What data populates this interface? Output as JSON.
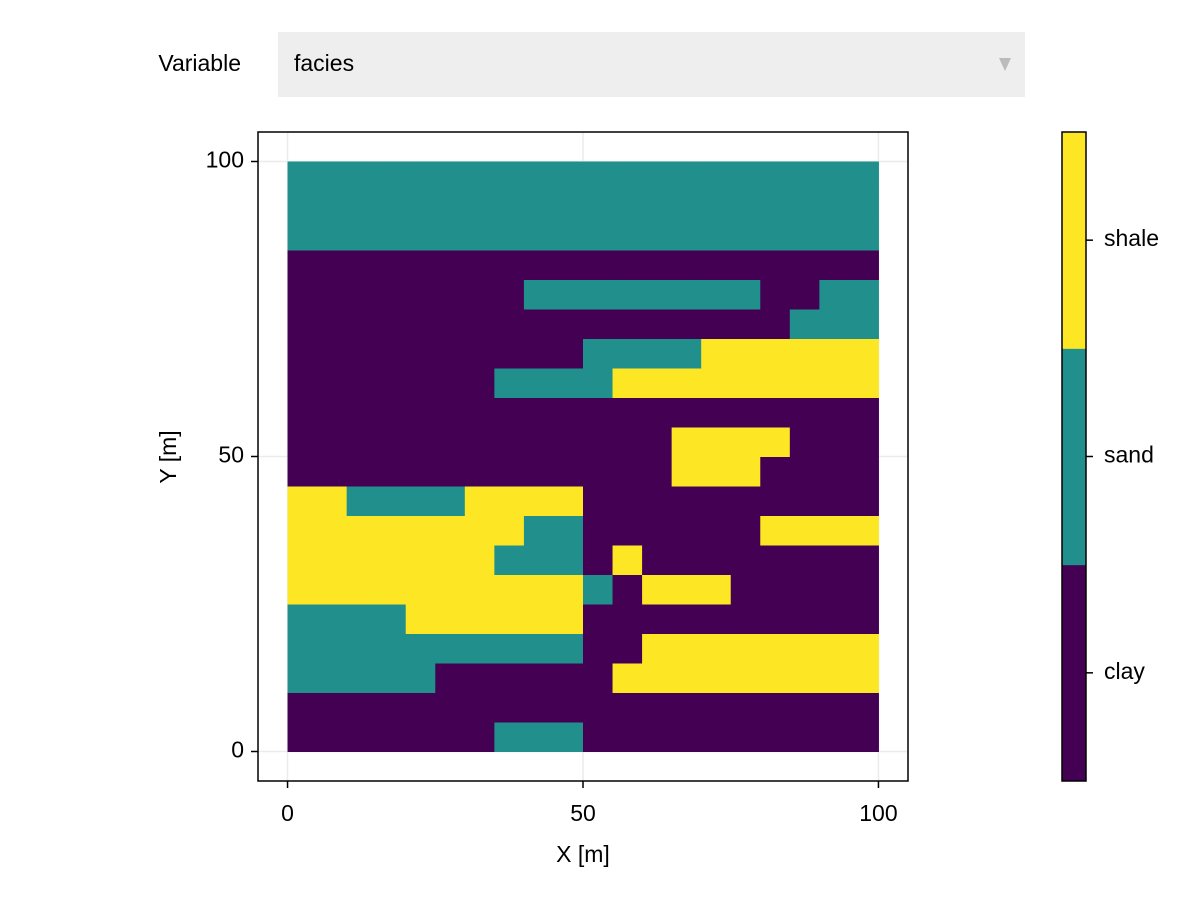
{
  "menu": {
    "label": "Variable",
    "selected": "facies"
  },
  "chart_data": {
    "type": "heatmap",
    "xlabel": "X [m]",
    "ylabel": "Y [m]",
    "xlim": [
      -5,
      105
    ],
    "ylim": [
      -5,
      105
    ],
    "xticks": [
      0,
      50,
      100
    ],
    "yticks": [
      0,
      50,
      100
    ],
    "grid": true,
    "categories": [
      "clay",
      "sand",
      "shale"
    ],
    "colors": [
      "#440154",
      "#21908d",
      "#fde725"
    ],
    "x": [
      2.5,
      7.5,
      12.5,
      17.5,
      22.5,
      27.5,
      32.5,
      37.5,
      42.5,
      47.5,
      52.5,
      57.5,
      62.5,
      67.5,
      72.5,
      77.5,
      82.5,
      87.5,
      92.5,
      97.5
    ],
    "y": [
      2.5,
      7.5,
      12.5,
      17.5,
      22.5,
      27.5,
      32.5,
      37.5,
      42.5,
      47.5,
      52.5,
      57.5,
      62.5,
      67.5,
      72.5,
      77.5,
      82.5,
      87.5,
      92.5,
      97.5
    ],
    "z": [
      [
        0,
        0,
        0,
        0,
        0,
        0,
        0,
        1,
        1,
        1,
        0,
        0,
        0,
        0,
        0,
        0,
        0,
        0,
        0,
        0
      ],
      [
        0,
        0,
        0,
        0,
        0,
        0,
        0,
        0,
        0,
        0,
        0,
        0,
        0,
        0,
        0,
        0,
        0,
        0,
        0,
        0
      ],
      [
        1,
        1,
        1,
        1,
        1,
        0,
        0,
        0,
        0,
        0,
        0,
        2,
        2,
        2,
        2,
        2,
        2,
        2,
        2,
        2
      ],
      [
        1,
        1,
        1,
        1,
        1,
        1,
        1,
        1,
        1,
        1,
        0,
        0,
        2,
        2,
        2,
        2,
        2,
        2,
        2,
        2
      ],
      [
        1,
        1,
        1,
        1,
        2,
        2,
        2,
        2,
        2,
        2,
        0,
        0,
        0,
        0,
        0,
        0,
        0,
        0,
        0,
        0
      ],
      [
        2,
        2,
        2,
        2,
        2,
        2,
        2,
        2,
        2,
        2,
        1,
        0,
        2,
        2,
        2,
        0,
        0,
        0,
        0,
        0
      ],
      [
        2,
        2,
        2,
        2,
        2,
        2,
        2,
        1,
        1,
        1,
        0,
        2,
        0,
        0,
        0,
        0,
        0,
        0,
        0,
        0
      ],
      [
        2,
        2,
        2,
        2,
        2,
        2,
        2,
        2,
        1,
        1,
        0,
        0,
        0,
        0,
        0,
        0,
        2,
        2,
        2,
        2
      ],
      [
        2,
        2,
        1,
        1,
        1,
        1,
        2,
        2,
        2,
        2,
        0,
        0,
        0,
        0,
        0,
        0,
        0,
        0,
        0,
        0
      ],
      [
        0,
        0,
        0,
        0,
        0,
        0,
        0,
        0,
        0,
        0,
        0,
        0,
        0,
        2,
        2,
        2,
        0,
        0,
        0,
        0
      ],
      [
        0,
        0,
        0,
        0,
        0,
        0,
        0,
        0,
        0,
        0,
        0,
        0,
        0,
        2,
        2,
        2,
        2,
        0,
        0,
        0
      ],
      [
        0,
        0,
        0,
        0,
        0,
        0,
        0,
        0,
        0,
        0,
        0,
        0,
        0,
        0,
        0,
        0,
        0,
        0,
        0,
        0
      ],
      [
        0,
        0,
        0,
        0,
        0,
        0,
        0,
        1,
        1,
        1,
        1,
        2,
        2,
        2,
        2,
        2,
        2,
        2,
        2,
        2
      ],
      [
        0,
        0,
        0,
        0,
        0,
        0,
        0,
        0,
        0,
        0,
        1,
        1,
        1,
        1,
        2,
        2,
        2,
        2,
        2,
        2
      ],
      [
        0,
        0,
        0,
        0,
        0,
        0,
        0,
        0,
        0,
        0,
        0,
        0,
        0,
        0,
        0,
        0,
        0,
        1,
        1,
        1
      ],
      [
        0,
        0,
        0,
        0,
        0,
        0,
        0,
        0,
        1,
        1,
        1,
        1,
        1,
        1,
        1,
        1,
        0,
        0,
        1,
        1
      ],
      [
        0,
        0,
        0,
        0,
        0,
        0,
        0,
        0,
        0,
        0,
        0,
        0,
        0,
        0,
        0,
        0,
        0,
        0,
        0,
        0
      ],
      [
        1,
        1,
        1,
        1,
        1,
        1,
        1,
        1,
        1,
        1,
        1,
        1,
        1,
        1,
        1,
        1,
        1,
        1,
        1,
        1
      ],
      [
        1,
        1,
        1,
        1,
        1,
        1,
        1,
        1,
        1,
        1,
        1,
        1,
        1,
        1,
        1,
        1,
        1,
        1,
        1,
        1
      ],
      [
        1,
        1,
        1,
        1,
        1,
        1,
        1,
        1,
        1,
        1,
        1,
        1,
        1,
        1,
        1,
        1,
        1,
        1,
        1,
        1
      ]
    ]
  }
}
